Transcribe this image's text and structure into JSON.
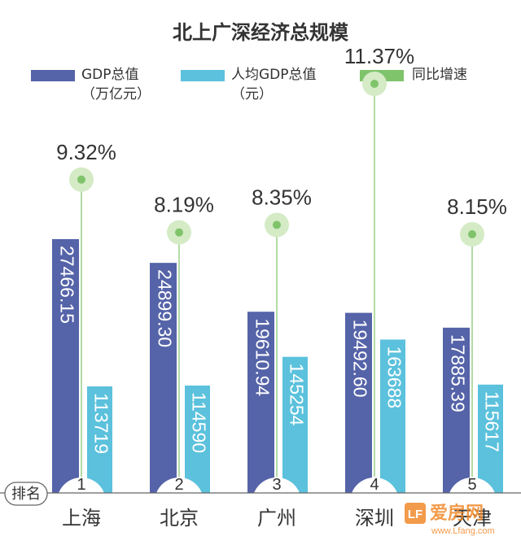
{
  "chart_data": {
    "type": "bar",
    "title": "北上广深经济总规模",
    "categories": [
      "上海",
      "北京",
      "广州",
      "深圳",
      "天津"
    ],
    "ranks": [
      "1",
      "2",
      "3",
      "4",
      "5"
    ],
    "rank_label": "排名",
    "series": [
      {
        "name": "GDP总值（万亿元）",
        "legend_line1": "GDP总值",
        "legend_line2": "（万亿元）",
        "color": "#5563a8",
        "values": [
          27466.15,
          24899.3,
          19610.94,
          19492.6,
          17885.39
        ],
        "labels": [
          "27466.15",
          "24899.30",
          "19610.94",
          "19492.60",
          "17885.39"
        ]
      },
      {
        "name": "人均GDP总值（元）",
        "legend_line1": "人均GDP总值",
        "legend_line2": "（元）",
        "color": "#5bc1dc",
        "values": [
          113719,
          114590,
          145254,
          163688,
          115617
        ],
        "labels": [
          "113719",
          "114590",
          "145254",
          "163688",
          "115617"
        ]
      },
      {
        "name": "同比增速",
        "legend_line1": "同比增速",
        "legend_line2": "",
        "color": "#7fc36b",
        "values": [
          9.32,
          8.19,
          8.35,
          11.37,
          8.15
        ],
        "labels": [
          "9.32%",
          "8.19%",
          "8.35%",
          "11.37%",
          "8.15%"
        ]
      }
    ],
    "watermark": "爱房网",
    "watermark_url": "www.Lfang.com"
  }
}
